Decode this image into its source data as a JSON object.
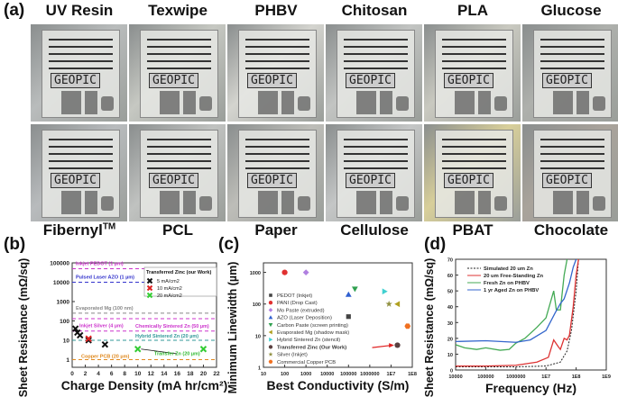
{
  "panel_a": {
    "label": "(a)",
    "top_row": [
      "UV Resin",
      "Texwipe",
      "PHBV",
      "Chitosan",
      "PLA",
      "Glucose"
    ],
    "bottom_row": [
      "FibernylTM",
      "PCL",
      "Paper",
      "Cellulose",
      "PBAT",
      "Chocolate"
    ],
    "photo_text": "GEOPIC",
    "tints": [
      "#b9bcbc",
      "#c6c8c2",
      "#d4d4cf",
      "#c2c4c2",
      "#c9c9c0",
      "#aeb0ac",
      "#b8bbbd",
      "#c0c2c0",
      "#bdbdb8",
      "#c4c6c6",
      "#d8cf9a",
      "#a9a39b"
    ]
  },
  "chart_data": [
    {
      "panel": "(b)",
      "type": "scatter",
      "xlabel": "Charge Density (mA hr/cm²)",
      "ylabel": "Sheet Resistance (mΩ/sq)",
      "xlim": [
        0,
        22
      ],
      "ylim": [
        0.4,
        100000
      ],
      "yscale": "log",
      "xticks": [
        "0",
        "2",
        "4",
        "6",
        "8",
        "10",
        "12",
        "14",
        "16",
        "18",
        "20",
        "22"
      ],
      "yticks": [
        "1",
        "10",
        "100",
        "1000",
        "10000",
        "100000"
      ],
      "reference_lines": [
        {
          "label": "Inkjet PEDOT (1 µm)",
          "y": 50000,
          "color": "#cc33cc"
        },
        {
          "label": "Pulsed Laser AZO (1 µm)",
          "y": 10000,
          "color": "#3333cc"
        },
        {
          "label": "Evaporated Mg (100 nm)",
          "y": 250,
          "color": "#888888"
        },
        {
          "label": "Chemically Sintered Zn (50 µm)",
          "y": 130,
          "color": "#cc33cc"
        },
        {
          "label": "Inkjet Silver (4 µm)",
          "y": 30,
          "color": "#cc33cc"
        },
        {
          "label": "Hybrid Sintered Zn (20 µm)",
          "y": 10,
          "color": "#339999"
        },
        {
          "label": "Copper PCB (20 µm)",
          "y": 1,
          "color": "#e08a20"
        }
      ],
      "legend_title": "Transferred Zinc (our Work)",
      "legend": "top-right",
      "series": [
        {
          "name": "5 mA/cm2",
          "color": "#111111",
          "x": [
            0.5,
            0.8,
            1.2,
            2.5,
            5
          ],
          "y": [
            40,
            25,
            18,
            10,
            6
          ]
        },
        {
          "name": "10 mA/cm2",
          "color": "#dd2222",
          "x": [
            2.5
          ],
          "y": [
            12
          ]
        },
        {
          "name": "20 mA/cm2",
          "color": "#33cc33",
          "x": [
            10,
            20
          ],
          "y": [
            3.5,
            3.5
          ]
        }
      ],
      "annotation": "Transfer Zn (20 µm)"
    },
    {
      "panel": "(c)",
      "type": "scatter",
      "xlabel": "Best Conductivity (S/m)",
      "ylabel": "Minimum Linewidth (µm)",
      "xscale": "log",
      "yscale": "log",
      "xlim": [
        10,
        100000000
      ],
      "ylim": [
        1,
        2000
      ],
      "xticks": [
        "10",
        "100",
        "1000",
        "10000",
        "100000",
        "1000000",
        "1E7",
        "1E8"
      ],
      "yticks": [
        "1",
        "10",
        "100",
        "1000"
      ],
      "legend": "left",
      "series": [
        {
          "name": "PEDOT (Inkjet)",
          "color": "#444444",
          "shape": "square",
          "x": 100000,
          "y": 40
        },
        {
          "name": "PANI (Drop Cast)",
          "color": "#e03030",
          "shape": "circle",
          "x": 100,
          "y": 1000
        },
        {
          "name": "Mo Paste (extruded)",
          "color": "#b080e0",
          "shape": "diamond",
          "x": 1000,
          "y": 1000
        },
        {
          "name": "AZO (Laser Deposition)",
          "color": "#3060d0",
          "shape": "triangle-up",
          "x": 100000,
          "y": 200
        },
        {
          "name": "Carbon Paste (screen printing)",
          "color": "#30a050",
          "shape": "triangle-down",
          "x": 200000,
          "y": 300
        },
        {
          "name": "Evaporated Mg (shadow mask)",
          "color": "#b0a020",
          "shape": "triangle-left",
          "x": 20000000,
          "y": 100
        },
        {
          "name": "Hybrid Sintered Zn (stencil)",
          "color": "#40d0d0",
          "shape": "triangle-right",
          "x": 5000000,
          "y": 250
        },
        {
          "name": "Transferred Zinc (Our Work)",
          "color": "#5a4040",
          "shape": "circle",
          "x": 20000000,
          "y": 5,
          "bold": true
        },
        {
          "name": "Silver (Inkjet)",
          "color": "#909040",
          "shape": "star",
          "x": 8000000,
          "y": 100
        },
        {
          "name": "Commercial Copper PCB",
          "color": "#f07020",
          "shape": "hexagon",
          "x": 60000000,
          "y": 20
        }
      ]
    },
    {
      "panel": "(d)",
      "type": "line",
      "xlabel": "Frequency (Hz)",
      "ylabel": "Sheet Resistance (mΩ/sq)",
      "xscale": "log",
      "xlim": [
        10000,
        1000000000
      ],
      "ylim": [
        0,
        70
      ],
      "xticks": [
        "10000",
        "100000",
        "1000000",
        "1E7",
        "1E8",
        "1E9"
      ],
      "yticks": [
        "0",
        "10",
        "20",
        "30",
        "40",
        "50",
        "60",
        "70"
      ],
      "legend": "top-left",
      "series": [
        {
          "name": "Simulated 20 um Zn",
          "color": "#222222",
          "dash": true,
          "x": [
            10000,
            1000000,
            10000000,
            30000000,
            50000000,
            70000000,
            100000000,
            120000000
          ],
          "y": [
            2,
            2,
            2.5,
            5,
            12,
            25,
            50,
            70
          ]
        },
        {
          "name": "20 um Free-Standing Zn",
          "color": "#dd3333",
          "x": [
            10000,
            100000,
            1000000,
            5000000,
            12000000,
            18000000,
            25000000,
            30000000,
            40000000,
            50000000,
            60000000,
            80000000,
            100000000,
            120000000
          ],
          "y": [
            2.5,
            2.5,
            3,
            5,
            8,
            19,
            15,
            13,
            20,
            19,
            22,
            40,
            60,
            70
          ]
        },
        {
          "name": "Fresh Zn on PHBV",
          "color": "#44aa55",
          "x": [
            10000,
            20000,
            50000,
            100000,
            300000,
            600000,
            1000000,
            2000000,
            5000000,
            10000000,
            18000000,
            22000000,
            30000000,
            40000000,
            50000000
          ],
          "y": [
            16,
            14,
            13,
            14,
            12.5,
            13,
            17,
            20,
            27,
            33,
            50,
            38,
            38,
            60,
            70
          ]
        },
        {
          "name": "1 yr Aged Zn on PHBV",
          "color": "#3366cc",
          "x": [
            10000,
            100000,
            1000000,
            3000000,
            10000000,
            20000000,
            30000000,
            40000000,
            60000000,
            80000000,
            100000000
          ],
          "y": [
            18,
            18.5,
            17.5,
            19,
            25,
            36,
            42,
            45,
            55,
            65,
            70
          ]
        }
      ]
    }
  ]
}
